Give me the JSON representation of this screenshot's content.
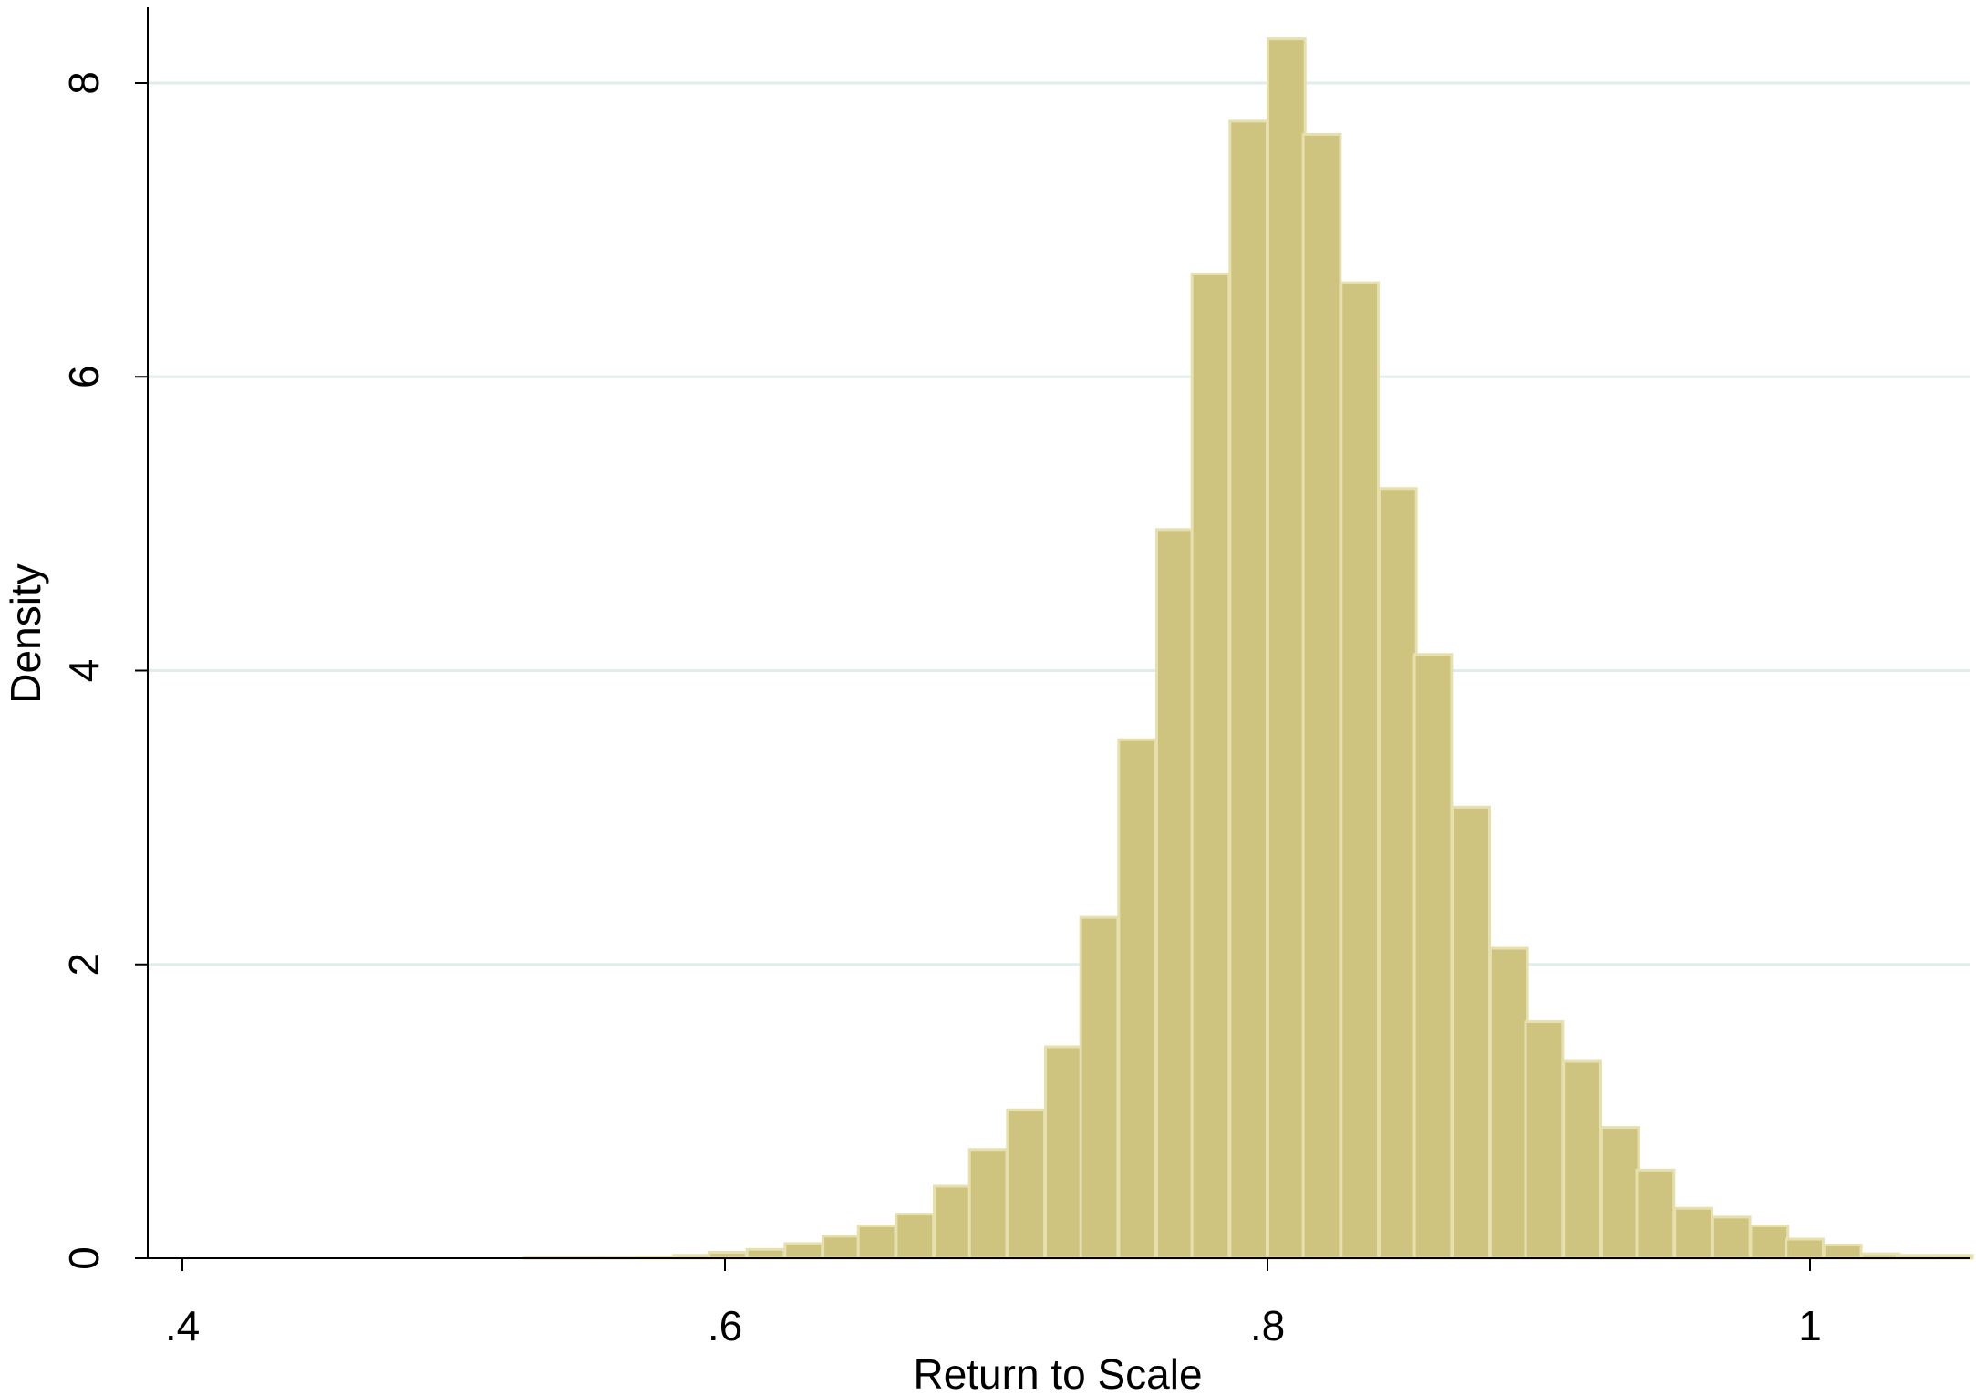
{
  "chart_data": {
    "type": "bar",
    "subtype": "histogram",
    "title": "",
    "xlabel": "Return to Scale",
    "ylabel": "Density",
    "xlim": [
      0.39,
      1.065
    ],
    "ylim": [
      0,
      8.6
    ],
    "grid": true,
    "bin_width": 0.0137,
    "bar_color": "#cfc47f",
    "bar_edge_color": "#e6dfae",
    "x_ticks": [
      {
        "value": 0.4,
        "label": ".4"
      },
      {
        "value": 0.6,
        "label": ".6"
      },
      {
        "value": 0.8,
        "label": ".8"
      },
      {
        "value": 1.0,
        "label": "1"
      }
    ],
    "y_ticks": [
      {
        "value": 0,
        "label": "0"
      },
      {
        "value": 2,
        "label": "2"
      },
      {
        "value": 4,
        "label": "4"
      },
      {
        "value": 6,
        "label": "6"
      },
      {
        "value": 8,
        "label": "8"
      }
    ],
    "bins": [
      {
        "x": 0.533,
        "y": 0.005
      },
      {
        "x": 0.547,
        "y": 0.005
      },
      {
        "x": 0.56,
        "y": 0.005
      },
      {
        "x": 0.574,
        "y": 0.01
      },
      {
        "x": 0.588,
        "y": 0.02
      },
      {
        "x": 0.601,
        "y": 0.04
      },
      {
        "x": 0.615,
        "y": 0.06
      },
      {
        "x": 0.629,
        "y": 0.1
      },
      {
        "x": 0.643,
        "y": 0.15
      },
      {
        "x": 0.656,
        "y": 0.22
      },
      {
        "x": 0.67,
        "y": 0.3
      },
      {
        "x": 0.684,
        "y": 0.49
      },
      {
        "x": 0.697,
        "y": 0.74
      },
      {
        "x": 0.711,
        "y": 1.01
      },
      {
        "x": 0.725,
        "y": 1.44
      },
      {
        "x": 0.738,
        "y": 2.32
      },
      {
        "x": 0.752,
        "y": 3.53
      },
      {
        "x": 0.766,
        "y": 4.96
      },
      {
        "x": 0.779,
        "y": 6.7
      },
      {
        "x": 0.793,
        "y": 7.74
      },
      {
        "x": 0.807,
        "y": 8.3
      },
      {
        "x": 0.82,
        "y": 7.65
      },
      {
        "x": 0.834,
        "y": 6.64
      },
      {
        "x": 0.848,
        "y": 5.24
      },
      {
        "x": 0.861,
        "y": 4.11
      },
      {
        "x": 0.875,
        "y": 3.07
      },
      {
        "x": 0.889,
        "y": 2.11
      },
      {
        "x": 0.902,
        "y": 1.61
      },
      {
        "x": 0.916,
        "y": 1.34
      },
      {
        "x": 0.93,
        "y": 0.89
      },
      {
        "x": 0.943,
        "y": 0.6
      },
      {
        "x": 0.957,
        "y": 0.34
      },
      {
        "x": 0.971,
        "y": 0.28
      },
      {
        "x": 0.985,
        "y": 0.22
      },
      {
        "x": 0.998,
        "y": 0.13
      },
      {
        "x": 1.012,
        "y": 0.09
      },
      {
        "x": 1.026,
        "y": 0.03
      },
      {
        "x": 1.039,
        "y": 0.02
      },
      {
        "x": 1.053,
        "y": 0.02
      }
    ]
  }
}
